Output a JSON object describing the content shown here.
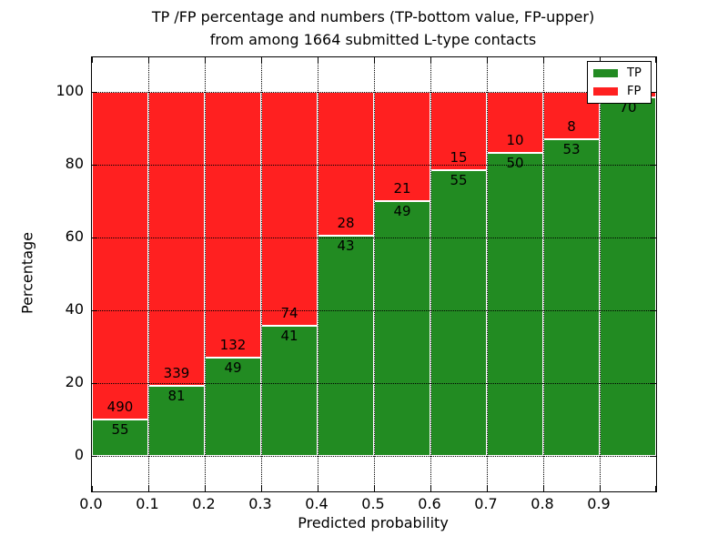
{
  "title": {
    "line1": "TP /FP percentage and numbers (TP-bottom value, FP-upper)",
    "line2": "from among 1664 submitted L-type contacts"
  },
  "axes": {
    "ylabel": "Percentage",
    "xlabel": "Predicted probability",
    "y_ticks": [
      "0",
      "20",
      "40",
      "60",
      "80",
      "100"
    ],
    "x_ticks": [
      "0.0",
      "0.1",
      "0.2",
      "0.3",
      "0.4",
      "0.5",
      "0.6",
      "0.7",
      "0.8",
      "0.9"
    ]
  },
  "legend": [
    {
      "label": "TP",
      "color": "#228B22"
    },
    {
      "label": "FP",
      "color": "#FF2020"
    }
  ],
  "colors": {
    "tp": "#228B22",
    "fp": "#FF2020",
    "grid": "#000000",
    "background": "#ffffff"
  },
  "chart_data": {
    "type": "bar",
    "stacked": true,
    "percent_normalized": true,
    "title": "TP /FP percentage and numbers (TP-bottom value, FP-upper) from among 1664 submitted L-type contacts",
    "xlabel": "Predicted probability",
    "ylabel": "Percentage",
    "xlim": [
      0.0,
      1.0
    ],
    "ylim": [
      -10,
      110
    ],
    "bin_width": 0.1,
    "bin_starts": [
      0.0,
      0.1,
      0.2,
      0.3,
      0.4,
      0.5,
      0.6,
      0.7,
      0.8,
      0.9
    ],
    "total_submitted": 1664,
    "series": [
      {
        "name": "TP",
        "color": "#228B22",
        "values": [
          55,
          81,
          49,
          41,
          43,
          49,
          55,
          50,
          53,
          70
        ]
      },
      {
        "name": "FP",
        "color": "#FF2020",
        "values": [
          490,
          339,
          132,
          74,
          28,
          21,
          15,
          10,
          8,
          1
        ]
      }
    ],
    "visible_bar_labels": {
      "tp": [
        "55",
        "81",
        "49",
        "41",
        "43",
        "49",
        "55",
        "50",
        "53",
        "70"
      ],
      "fp": [
        "490",
        "339",
        "132",
        "74",
        "28",
        "21",
        "15",
        "10",
        "8",
        ""
      ]
    },
    "grid": "dotted",
    "legend_position": "upper right"
  }
}
